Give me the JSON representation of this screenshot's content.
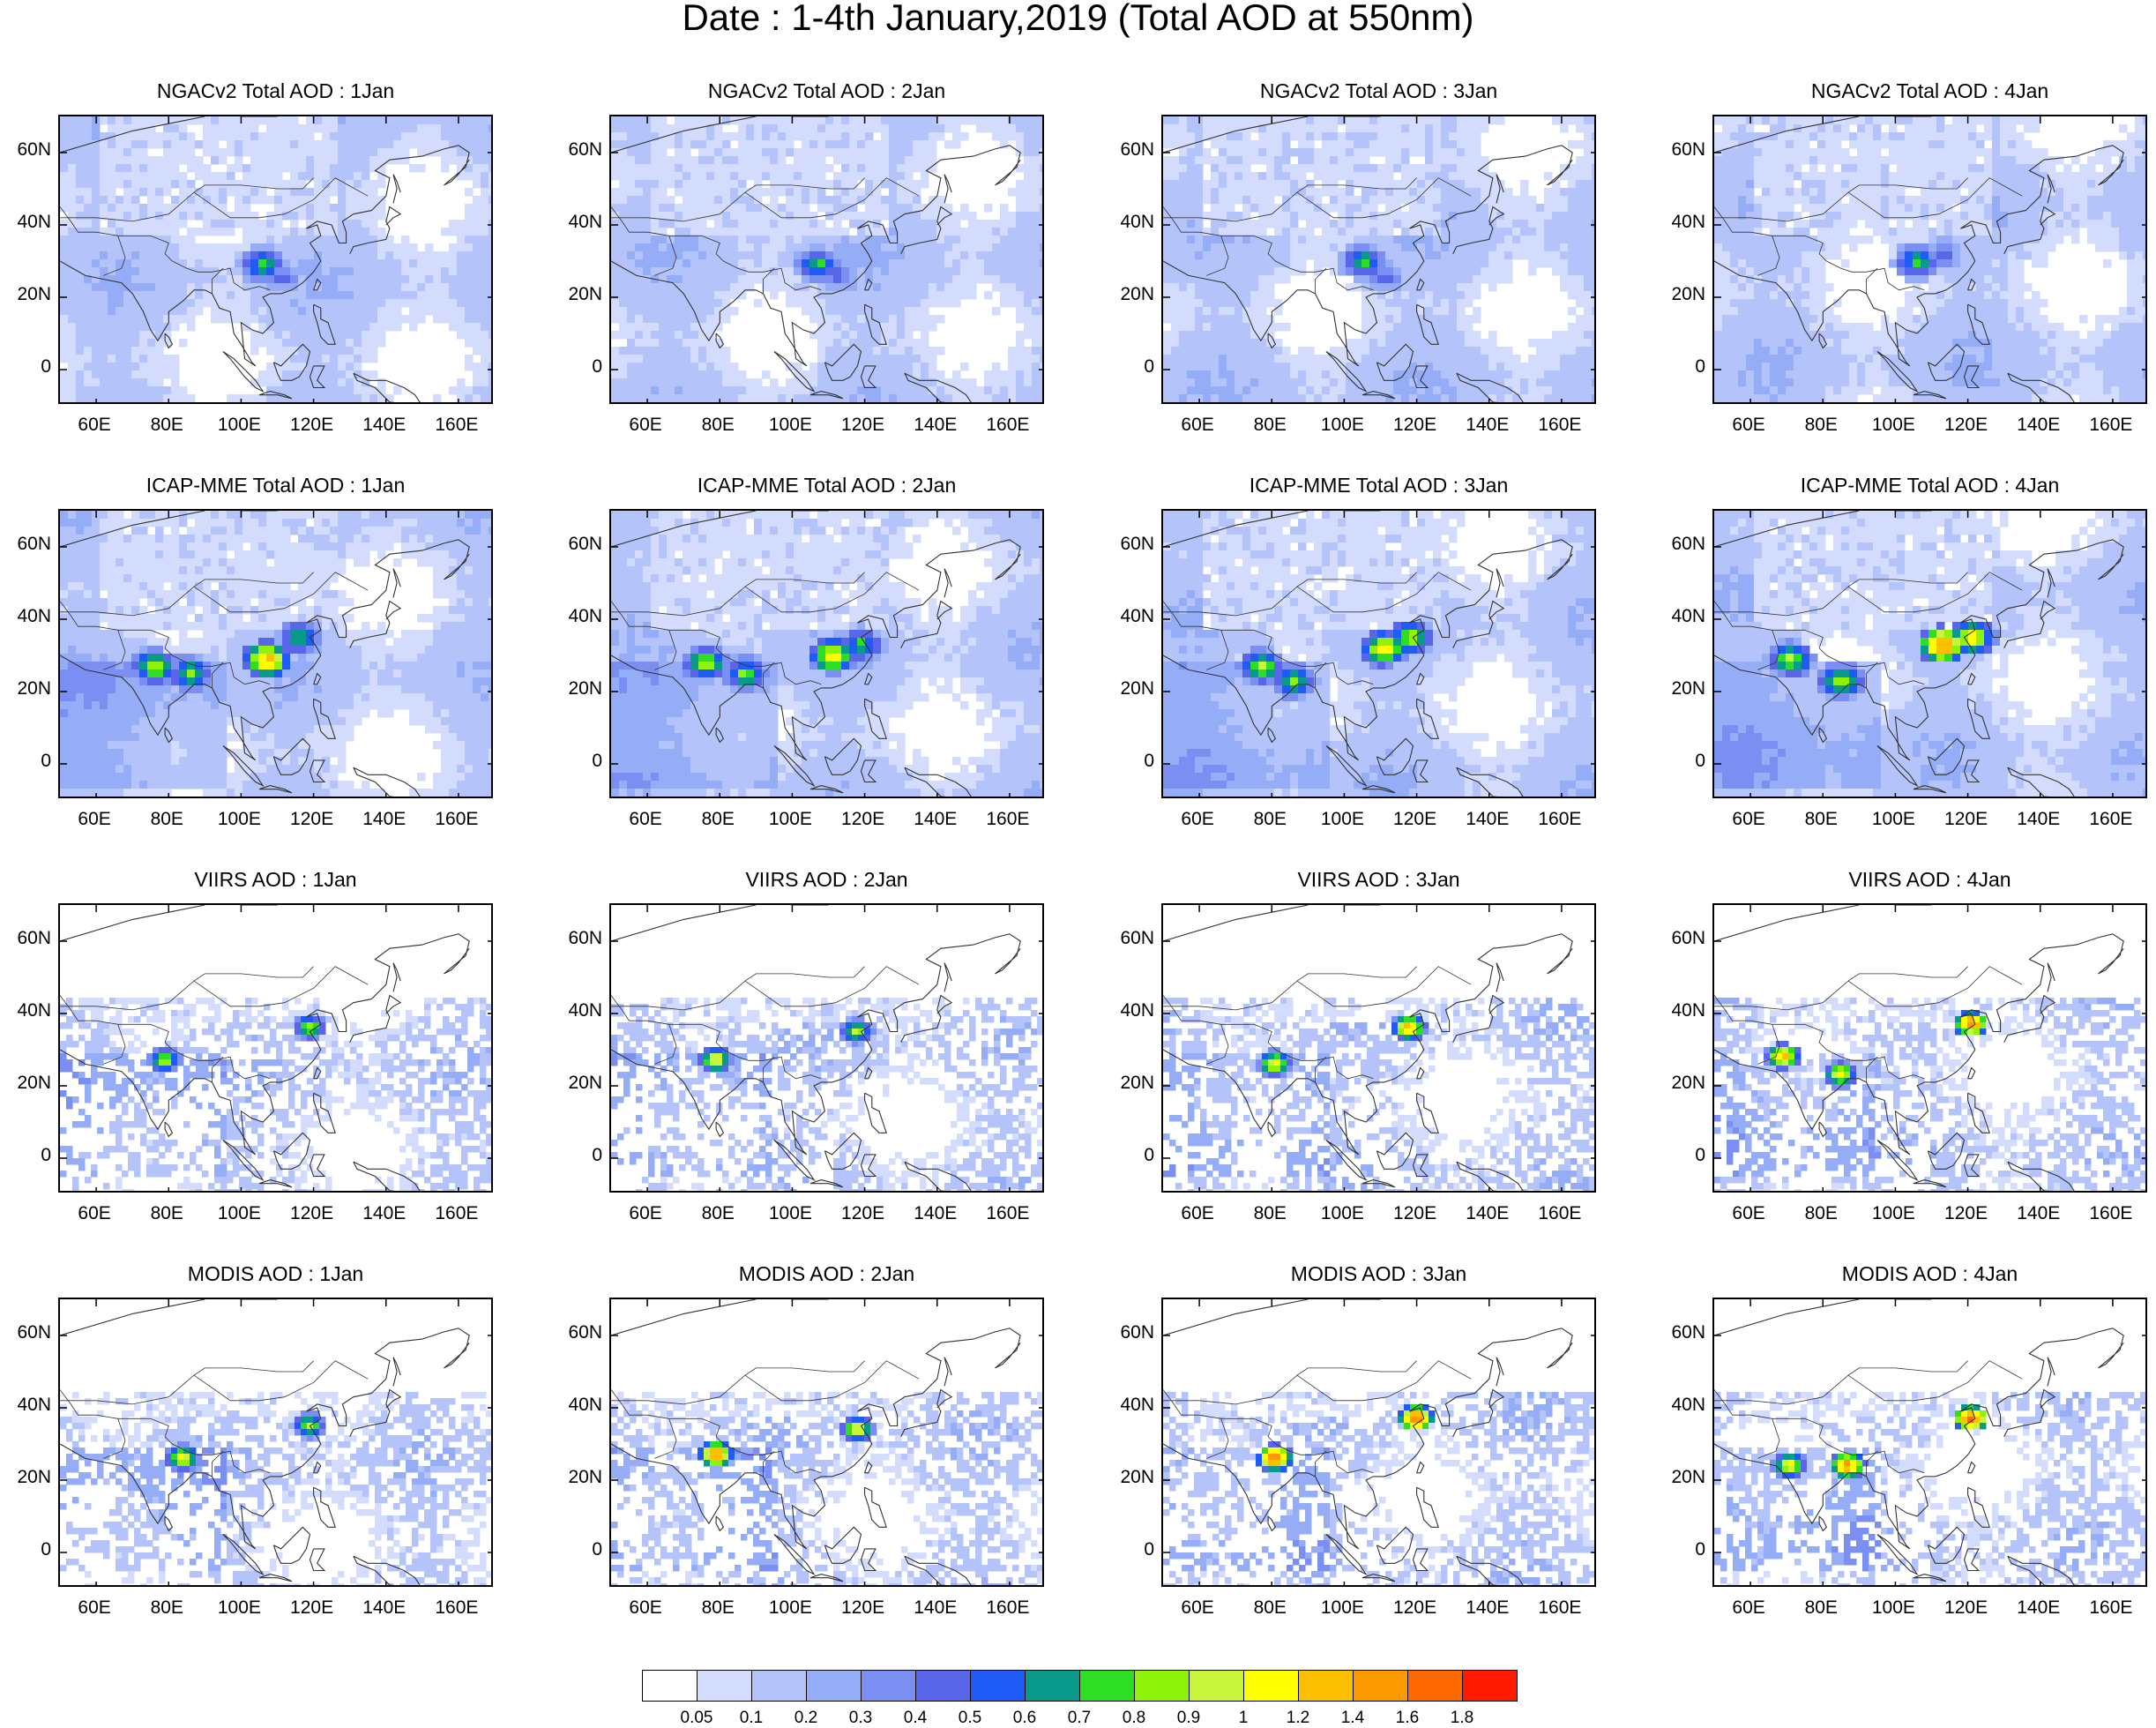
{
  "title": "Date : 1-4th January,2019 (Total AOD at 550nm)",
  "chart_data": {
    "type": "heatmap",
    "variable": "Total AOD at 550nm",
    "region": {
      "lon_range": [
        50,
        170
      ],
      "lat_range": [
        -10,
        70
      ]
    },
    "lat_ticks": [
      "60N",
      "40N",
      "20N",
      "0"
    ],
    "lon_ticks": [
      "60E",
      "80E",
      "100E",
      "120E",
      "140E",
      "160E"
    ],
    "rows": [
      {
        "source": "NGACv2",
        "titles": [
          "NGACv2 Total AOD : 1Jan",
          "NGACv2 Total AOD : 2Jan",
          "NGACv2 Total AOD : 3Jan",
          "NGACv2 Total AOD : 4Jan"
        ]
      },
      {
        "source": "ICAP-MME",
        "titles": [
          "ICAP-MME Total AOD : 1Jan",
          "ICAP-MME Total AOD : 2Jan",
          "ICAP-MME Total AOD : 3Jan",
          "ICAP-MME Total AOD : 4Jan"
        ]
      },
      {
        "source": "VIIRS",
        "titles": [
          "VIIRS AOD : 1Jan",
          "VIIRS AOD : 2Jan",
          "VIIRS AOD : 3Jan",
          "VIIRS AOD : 4Jan"
        ]
      },
      {
        "source": "MODIS",
        "titles": [
          "MODIS AOD : 1Jan",
          "MODIS AOD : 2Jan",
          "MODIS AOD : 3Jan",
          "MODIS AOD : 4Jan"
        ]
      }
    ],
    "hotspots": [
      [
        [
          {
            "lon": 105,
            "lat": 30,
            "value": 0.8
          },
          {
            "lon": 110,
            "lat": 27,
            "value": 0.5
          }
        ],
        [
          {
            "lon": 106,
            "lat": 30,
            "value": 0.8
          },
          {
            "lon": 112,
            "lat": 27,
            "value": 0.5
          }
        ],
        [
          {
            "lon": 104,
            "lat": 31,
            "value": 0.8
          },
          {
            "lon": 110,
            "lat": 27,
            "value": 0.5
          }
        ],
        [
          {
            "lon": 105,
            "lat": 31,
            "value": 0.8
          },
          {
            "lon": 112,
            "lat": 33,
            "value": 0.5
          }
        ]
      ],
      [
        [
          {
            "lon": 75,
            "lat": 28,
            "value": 1.0
          },
          {
            "lon": 85,
            "lat": 26,
            "value": 0.9
          },
          {
            "lon": 106,
            "lat": 30,
            "value": 1.4
          },
          {
            "lon": 115,
            "lat": 36,
            "value": 0.8
          }
        ],
        [
          {
            "lon": 75,
            "lat": 29,
            "value": 1.0
          },
          {
            "lon": 86,
            "lat": 26,
            "value": 0.9
          },
          {
            "lon": 110,
            "lat": 31,
            "value": 1.2
          },
          {
            "lon": 118,
            "lat": 34,
            "value": 0.8
          }
        ],
        [
          {
            "lon": 76,
            "lat": 28,
            "value": 1.0
          },
          {
            "lon": 85,
            "lat": 24,
            "value": 0.9
          },
          {
            "lon": 110,
            "lat": 33,
            "value": 1.2
          },
          {
            "lon": 117,
            "lat": 36,
            "value": 1.0
          }
        ],
        [
          {
            "lon": 70,
            "lat": 30,
            "value": 1.0
          },
          {
            "lon": 84,
            "lat": 24,
            "value": 1.0
          },
          {
            "lon": 112,
            "lat": 34,
            "value": 1.6
          },
          {
            "lon": 120,
            "lat": 36,
            "value": 1.2
          }
        ]
      ],
      [
        [
          {
            "lon": 78,
            "lat": 28,
            "value": 1.0
          },
          {
            "lon": 118,
            "lat": 37,
            "value": 1.0
          }
        ],
        [
          {
            "lon": 78,
            "lat": 28,
            "value": 1.2
          },
          {
            "lon": 117,
            "lat": 36,
            "value": 1.0
          }
        ],
        [
          {
            "lon": 80,
            "lat": 27,
            "value": 1.2
          },
          {
            "lon": 117,
            "lat": 37,
            "value": 1.4
          }
        ],
        [
          {
            "lon": 84,
            "lat": 24,
            "value": 1.2
          },
          {
            "lon": 120,
            "lat": 38,
            "value": 1.6
          },
          {
            "lon": 68,
            "lat": 29,
            "value": 1.4
          }
        ]
      ],
      [
        [
          {
            "lon": 83,
            "lat": 27,
            "value": 1.2
          },
          {
            "lon": 118,
            "lat": 36,
            "value": 1.0
          }
        ],
        [
          {
            "lon": 78,
            "lat": 28,
            "value": 1.6
          },
          {
            "lon": 117,
            "lat": 35,
            "value": 1.2
          }
        ],
        [
          {
            "lon": 80,
            "lat": 27,
            "value": 1.8
          },
          {
            "lon": 119,
            "lat": 38,
            "value": 1.8
          }
        ],
        [
          {
            "lon": 86,
            "lat": 25,
            "value": 1.6
          },
          {
            "lon": 120,
            "lat": 38,
            "value": 1.8
          },
          {
            "lon": 70,
            "lat": 25,
            "value": 1.2
          }
        ]
      ]
    ],
    "colorbar": {
      "levels": [
        "0.05",
        "0.1",
        "0.2",
        "0.3",
        "0.4",
        "0.5",
        "0.6",
        "0.7",
        "0.8",
        "0.9",
        "1",
        "1.2",
        "1.4",
        "1.6",
        "1.8"
      ],
      "colors": [
        "#ffffff",
        "#d3dcfc",
        "#b4c4fa",
        "#95acf7",
        "#7b8ff2",
        "#5a66ea",
        "#1e5cf5",
        "#0a9a8c",
        "#2ede24",
        "#8ef20a",
        "#c8f53c",
        "#ffff00",
        "#fcc000",
        "#fc9a00",
        "#ff6a00",
        "#ff1a00"
      ]
    }
  }
}
